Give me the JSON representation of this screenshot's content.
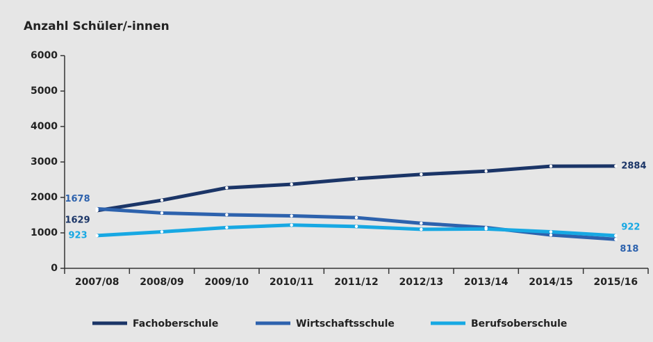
{
  "chart_data": {
    "type": "line",
    "title": "Anzahl Schüler/-innen",
    "categories": [
      "2007/08",
      "2008/09",
      "2009/10",
      "2010/11",
      "2011/12",
      "2012/13",
      "2013/14",
      "2014/15",
      "2015/16"
    ],
    "series": [
      {
        "name": "Fachoberschule",
        "color": "#1b3567",
        "values": [
          1629,
          1920,
          2270,
          2370,
          2530,
          2650,
          2740,
          2880,
          2884
        ]
      },
      {
        "name": "Wirtschaftsschule",
        "color": "#2d62ad",
        "values": [
          1678,
          1560,
          1510,
          1480,
          1430,
          1270,
          1150,
          940,
          818
        ]
      },
      {
        "name": "Berufsoberschule",
        "color": "#17a8e3",
        "values": [
          923,
          1030,
          1150,
          1220,
          1180,
          1100,
          1110,
          1030,
          922
        ]
      }
    ],
    "ylim": [
      0,
      6000
    ],
    "yticks": [
      0,
      1000,
      2000,
      3000,
      4000,
      5000,
      6000
    ],
    "legend": "bottom"
  }
}
